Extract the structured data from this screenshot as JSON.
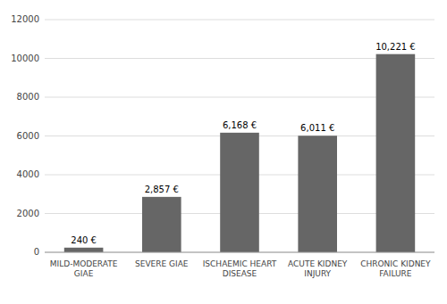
{
  "chart_data": {
    "type": "bar",
    "categories": [
      "MILD-MODERATE\nGIAE",
      "SEVERE GIAE",
      "ISCHAEMIC HEART\nDISEASE",
      "ACUTE KIDNEY\nINJURY",
      "CHRONIC KIDNEY\nFAILURE"
    ],
    "values": [
      240,
      2857,
      6168,
      6011,
      10221
    ],
    "value_labels": [
      "240 €",
      "2,857 €",
      "6,168 €",
      "6,011 €",
      "10,221 €"
    ],
    "data_labels": true,
    "color": "#666666",
    "ylim": [
      0,
      12000
    ],
    "yticks": [
      0,
      2000,
      4000,
      6000,
      8000,
      10000,
      12000
    ],
    "grid": true
  }
}
